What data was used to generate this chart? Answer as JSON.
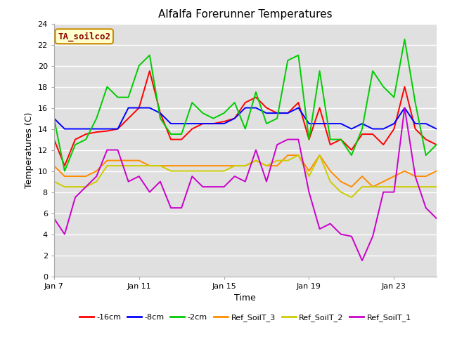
{
  "title": "Alfalfa Forerunner Temperatures",
  "xlabel": "Time",
  "ylabel": "Temperatures (C)",
  "ylim": [
    0,
    24
  ],
  "yticks": [
    0,
    2,
    4,
    6,
    8,
    10,
    12,
    14,
    16,
    18,
    20,
    22,
    24
  ],
  "xtick_labels": [
    "Jan 7",
    "Jan 11",
    "Jan 15",
    "Jan 19",
    "Jan 23"
  ],
  "xtick_positions": [
    0,
    4,
    8,
    12,
    16
  ],
  "annotation": "TA_soilco2",
  "bg_color": "#e0e0e0",
  "series": {
    "neg16cm": {
      "label": "-16cm",
      "color": "#ff0000",
      "values": [
        13.0,
        10.5,
        13.0,
        13.5,
        13.7,
        13.8,
        14.0,
        15.0,
        16.0,
        19.5,
        15.5,
        13.0,
        13.0,
        14.0,
        14.5,
        14.5,
        14.7,
        15.0,
        16.5,
        17.0,
        16.0,
        15.5,
        15.5,
        16.5,
        13.0,
        16.0,
        12.5,
        13.0,
        12.0,
        13.5,
        13.5,
        12.5,
        14.0,
        18.0,
        14.0,
        13.0,
        12.5
      ]
    },
    "neg8cm": {
      "label": "-8cm",
      "color": "#0000ff",
      "values": [
        15.0,
        14.0,
        14.0,
        14.0,
        14.0,
        14.0,
        14.0,
        16.0,
        16.0,
        16.0,
        15.5,
        14.5,
        14.5,
        14.5,
        14.5,
        14.5,
        14.5,
        15.0,
        16.0,
        16.0,
        15.5,
        15.5,
        15.5,
        16.0,
        14.5,
        14.5,
        14.5,
        14.5,
        14.0,
        14.5,
        14.0,
        14.0,
        14.5,
        16.0,
        14.5,
        14.5,
        14.0
      ]
    },
    "neg2cm": {
      "label": "-2cm",
      "color": "#00cc00",
      "values": [
        15.0,
        10.0,
        12.5,
        13.0,
        15.0,
        18.0,
        17.0,
        17.0,
        20.0,
        21.0,
        15.0,
        13.5,
        13.5,
        16.5,
        15.5,
        15.0,
        15.5,
        16.5,
        14.0,
        17.5,
        14.5,
        15.0,
        20.5,
        21.0,
        13.0,
        19.5,
        13.0,
        13.0,
        11.5,
        14.0,
        19.5,
        18.0,
        17.0,
        22.5,
        16.5,
        11.5,
        12.5
      ]
    },
    "ref_soilt3": {
      "label": "Ref_SoilT_3",
      "color": "#ff8c00",
      "values": [
        10.5,
        9.5,
        9.5,
        9.5,
        10.0,
        11.0,
        11.0,
        11.0,
        11.0,
        10.5,
        10.5,
        10.5,
        10.5,
        10.5,
        10.5,
        10.5,
        10.5,
        10.5,
        10.5,
        11.0,
        10.5,
        10.5,
        11.5,
        11.5,
        10.0,
        11.5,
        10.0,
        9.0,
        8.5,
        9.5,
        8.5,
        9.0,
        9.5,
        10.0,
        9.5,
        9.5,
        10.0
      ]
    },
    "ref_soilt2": {
      "label": "Ref_SoilT_2",
      "color": "#cccc00",
      "values": [
        9.0,
        8.5,
        8.5,
        8.5,
        9.0,
        10.5,
        10.5,
        10.5,
        10.5,
        10.5,
        10.5,
        10.0,
        10.0,
        10.0,
        10.0,
        10.0,
        10.0,
        10.5,
        10.5,
        11.0,
        10.5,
        11.0,
        11.0,
        11.5,
        9.5,
        11.5,
        9.0,
        8.0,
        7.5,
        8.5,
        8.5,
        8.5,
        8.5,
        8.5,
        8.5,
        8.5,
        8.5
      ]
    },
    "ref_soilt1": {
      "label": "Ref_SoilT_1",
      "color": "#cc00cc",
      "values": [
        5.5,
        4.0,
        7.5,
        8.5,
        9.5,
        12.0,
        12.0,
        9.0,
        9.5,
        8.0,
        9.0,
        6.5,
        6.5,
        9.5,
        8.5,
        8.5,
        8.5,
        9.5,
        9.0,
        12.0,
        9.0,
        12.5,
        13.0,
        13.0,
        8.0,
        4.5,
        5.0,
        4.0,
        3.8,
        1.5,
        3.8,
        8.0,
        8.0,
        16.0,
        9.5,
        6.5,
        5.5
      ]
    }
  },
  "legend_items": [
    {
      "label": "-16cm",
      "color": "#ff0000"
    },
    {
      "label": "-8cm",
      "color": "#0000ff"
    },
    {
      "label": "-2cm",
      "color": "#00cc00"
    },
    {
      "label": "Ref_SoilT_3",
      "color": "#ff8c00"
    },
    {
      "label": "Ref_SoilT_2",
      "color": "#cccc00"
    },
    {
      "label": "Ref_SoilT_1",
      "color": "#cc00cc"
    }
  ],
  "figsize": [
    6.4,
    4.8
  ],
  "dpi": 100,
  "title_fontsize": 11,
  "axis_label_fontsize": 9,
  "tick_fontsize": 8,
  "legend_fontsize": 8,
  "annotation_fontsize": 9,
  "linewidth": 1.4
}
